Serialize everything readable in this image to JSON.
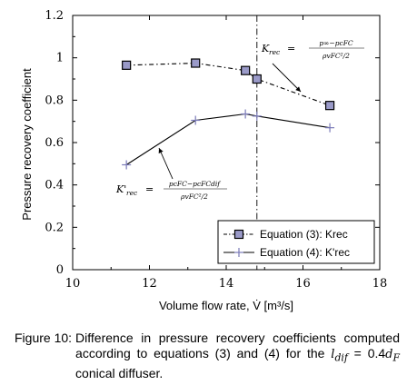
{
  "chart_data": {
    "type": "line",
    "xlabel": "Volume flow rate, V̇ [m³/s]",
    "ylabel": "Pressure recovery coefficient",
    "xlim": [
      10,
      18
    ],
    "ylim": [
      0,
      1.2
    ],
    "x_ticks": [
      "10",
      "12",
      "14",
      "16",
      "18"
    ],
    "y_ticks": [
      "0",
      "0.2",
      "0.4",
      "0.6",
      "0.8",
      "1",
      "1.2"
    ],
    "grid": false,
    "legend_position": "bottom-right",
    "vline_x": 14.8,
    "series": [
      {
        "name": "Equation (3): Krec",
        "marker": "square",
        "line": "dash-dot",
        "color": "#000000",
        "marker_fill": "#9a9ac8",
        "x": [
          11.4,
          13.2,
          14.5,
          14.8,
          16.7
        ],
        "y": [
          0.965,
          0.975,
          0.94,
          0.9,
          0.775
        ]
      },
      {
        "name": "Equation (4): K'rec",
        "marker": "plus",
        "line": "solid",
        "color": "#000000",
        "marker_color": "#7a7ab8",
        "x": [
          11.4,
          13.2,
          14.5,
          14.8,
          16.7
        ],
        "y": [
          0.495,
          0.705,
          0.735,
          0.725,
          0.67
        ]
      }
    ],
    "annotations": [
      {
        "id": "krec",
        "lhs": "Krec",
        "numerator": "p∞−pcFC",
        "denominator": "ρvFC²/2"
      },
      {
        "id": "krec_prime",
        "lhs": "K'rec",
        "numerator": "pcFC−pcFCdif",
        "denominator": "ρvFC²/2"
      }
    ]
  },
  "caption": {
    "lead": "Figure 10:",
    "line1": "Difference in pressure recovery coefficients computed according to equations (3) and (4) for the",
    "var_l": "l",
    "var_l_sub": "dif",
    "middle": " = 0.4",
    "var_d": "d",
    "var_d_sub": "F",
    "end": " conical diffuser."
  }
}
